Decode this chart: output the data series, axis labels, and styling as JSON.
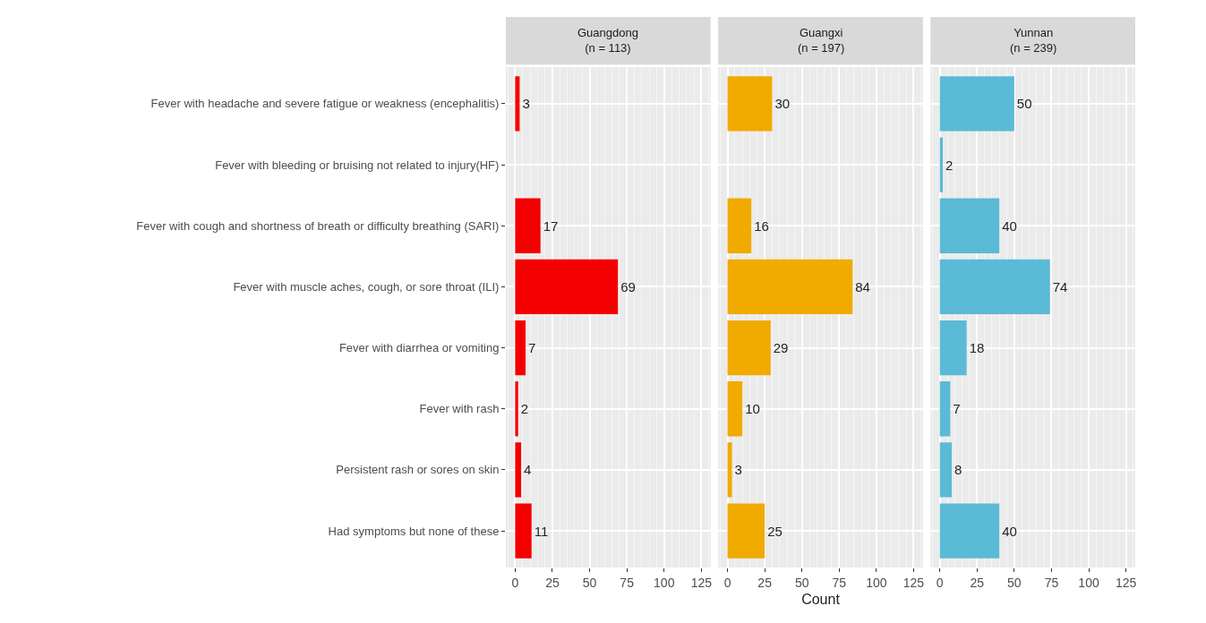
{
  "chart_data": [
    {
      "type": "bar",
      "orientation": "horizontal",
      "title": "Guangdong\n(n = 113)",
      "categories": [
        "Fever with headache and severe fatigue or weakness (encephalitis)",
        "Fever with bleeding or bruising not related to injury(HF)",
        "Fever with cough and shortness of breath or difficulty breathing (SARI)",
        "Fever with muscle aches, cough, or sore throat (ILI)",
        "Fever with diarrhea or vomiting",
        "Fever with rash",
        "Persistent rash or sores on skin",
        "Had symptoms but none of these"
      ],
      "series": [
        {
          "color": "#f50000",
          "values": [
            3,
            null,
            17,
            69,
            7,
            2,
            4,
            11
          ]
        }
      ],
      "data_labels": true,
      "xlim": [
        -6.25,
        131.25
      ],
      "xticks": [
        0,
        25,
        50,
        75,
        100,
        125
      ],
      "grid": true
    },
    {
      "type": "bar",
      "orientation": "horizontal",
      "title": "Guangxi\n(n = 197)",
      "xlabel": "Count",
      "categories": [
        "Fever with headache and severe fatigue or weakness (encephalitis)",
        "Fever with bleeding or bruising not related to injury(HF)",
        "Fever with cough and shortness of breath or difficulty breathing (SARI)",
        "Fever with muscle aches, cough, or sore throat (ILI)",
        "Fever with diarrhea or vomiting",
        "Fever with rash",
        "Persistent rash or sores on skin",
        "Had symptoms but none of these"
      ],
      "series": [
        {
          "color": "#f0aa00",
          "values": [
            30,
            null,
            16,
            84,
            29,
            10,
            3,
            25
          ]
        }
      ],
      "data_labels": true,
      "xlim": [
        -6.25,
        131.25
      ],
      "xticks": [
        0,
        25,
        50,
        75,
        100,
        125
      ],
      "grid": true,
      "tick_labels": "x"
    },
    {
      "type": "bar",
      "orientation": "horizontal",
      "title": "Yunnan\n(n = 239)",
      "categories": [
        "Fever with headache and severe fatigue or weakness (encephalitis)",
        "Fever with bleeding or bruising not related to injury(HF)",
        "Fever with cough and shortness of breath or difficulty breathing (SARI)",
        "Fever with muscle aches, cough, or sore throat (ILI)",
        "Fever with diarrhea or vomiting",
        "Fever with rash",
        "Persistent rash or sores on skin",
        "Had symptoms but none of these"
      ],
      "series": [
        {
          "color": "#5bbad6",
          "values": [
            50,
            2,
            40,
            74,
            18,
            7,
            8,
            40
          ]
        }
      ],
      "data_labels": true,
      "xlim": [
        -6.25,
        131.25
      ],
      "xticks": [
        0,
        25,
        50,
        75,
        100,
        125
      ],
      "grid": true,
      "tick_labels": "x"
    }
  ]
}
